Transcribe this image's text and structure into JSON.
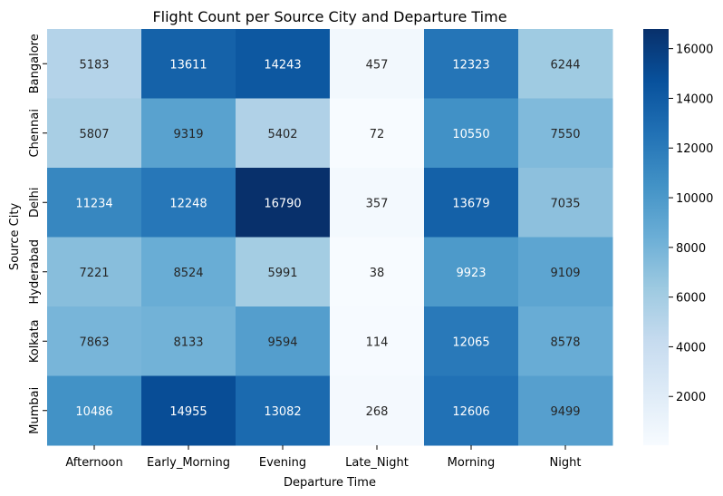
{
  "chart_data": {
    "type": "heatmap",
    "title": "Flight Count per Source City and Departure Time",
    "xlabel": "Departure Time",
    "ylabel": "Source City",
    "x_categories": [
      "Afternoon",
      "Early_Morning",
      "Evening",
      "Late_Night",
      "Morning",
      "Night"
    ],
    "y_categories": [
      "Bangalore",
      "Chennai",
      "Delhi",
      "Hyderabad",
      "Kolkata",
      "Mumbai"
    ],
    "values": [
      [
        5183,
        13611,
        14243,
        457,
        12323,
        6244
      ],
      [
        5807,
        9319,
        5402,
        72,
        10550,
        7550
      ],
      [
        11234,
        12248,
        16790,
        357,
        13679,
        7035
      ],
      [
        7221,
        8524,
        5991,
        38,
        9923,
        9109
      ],
      [
        7863,
        8133,
        9594,
        114,
        12065,
        8578
      ],
      [
        10486,
        14955,
        13082,
        268,
        12606,
        9499
      ]
    ],
    "colormap": "Blues",
    "color_range": [
      38,
      16790
    ],
    "colorbar_ticks": [
      2000,
      4000,
      6000,
      8000,
      10000,
      12000,
      14000,
      16000
    ],
    "annotations": true
  }
}
